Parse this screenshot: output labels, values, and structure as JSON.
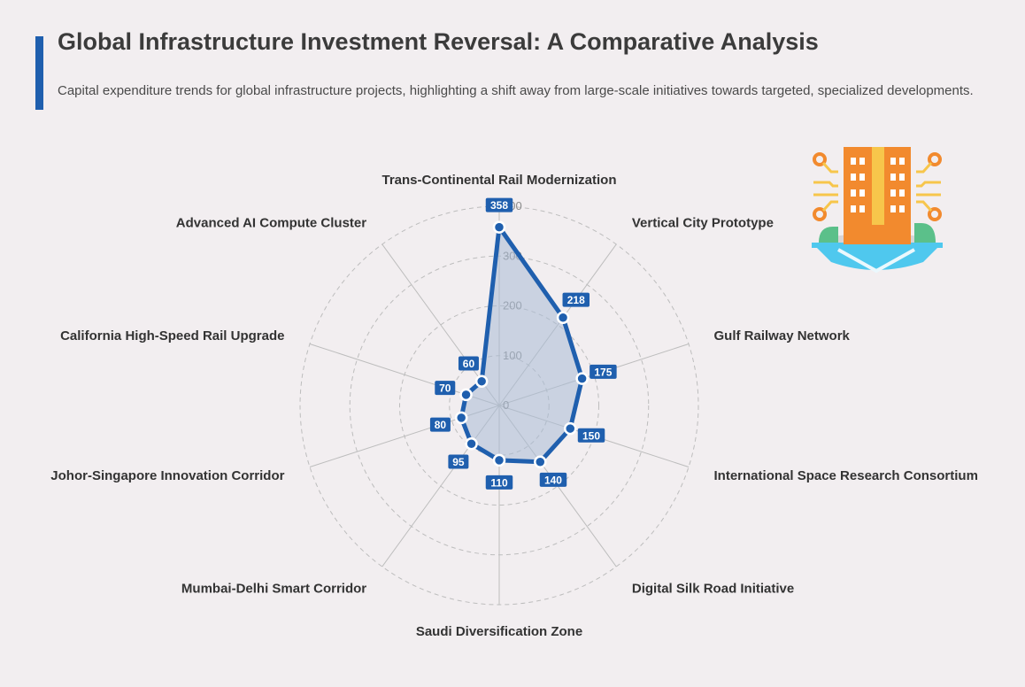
{
  "header": {
    "title": "Global Infrastructure Investment Reversal: A Comparative Analysis",
    "subtitle": "Capital expenditure trends for global infrastructure projects, highlighting a shift away from large-scale initiatives towards targeted, specialized developments."
  },
  "colors": {
    "accent": "#1f5fae",
    "fill": "#aabbd6",
    "grid": "#bdbdbd",
    "background": "#f2eef0"
  },
  "icon": "smart-building-icon",
  "chart_data": {
    "type": "radar",
    "title": "",
    "categories": [
      "Trans-Continental Rail Modernization",
      "Vertical City Prototype",
      "Gulf Railway Network",
      "International Space Research Consortium",
      "Digital Silk Road Initiative",
      "Saudi Diversification Zone",
      "Mumbai-Delhi Smart Corridor",
      "Johor-Singapore Innovation Corridor",
      "California High-Speed Rail Upgrade",
      "Advanced AI Compute Cluster"
    ],
    "values": [
      358,
      218,
      175,
      150,
      140,
      110,
      95,
      80,
      70,
      60
    ],
    "rlim": [
      0,
      400
    ],
    "ticks": [
      0,
      100,
      200,
      300,
      400
    ],
    "grid": true,
    "legend": "none"
  }
}
